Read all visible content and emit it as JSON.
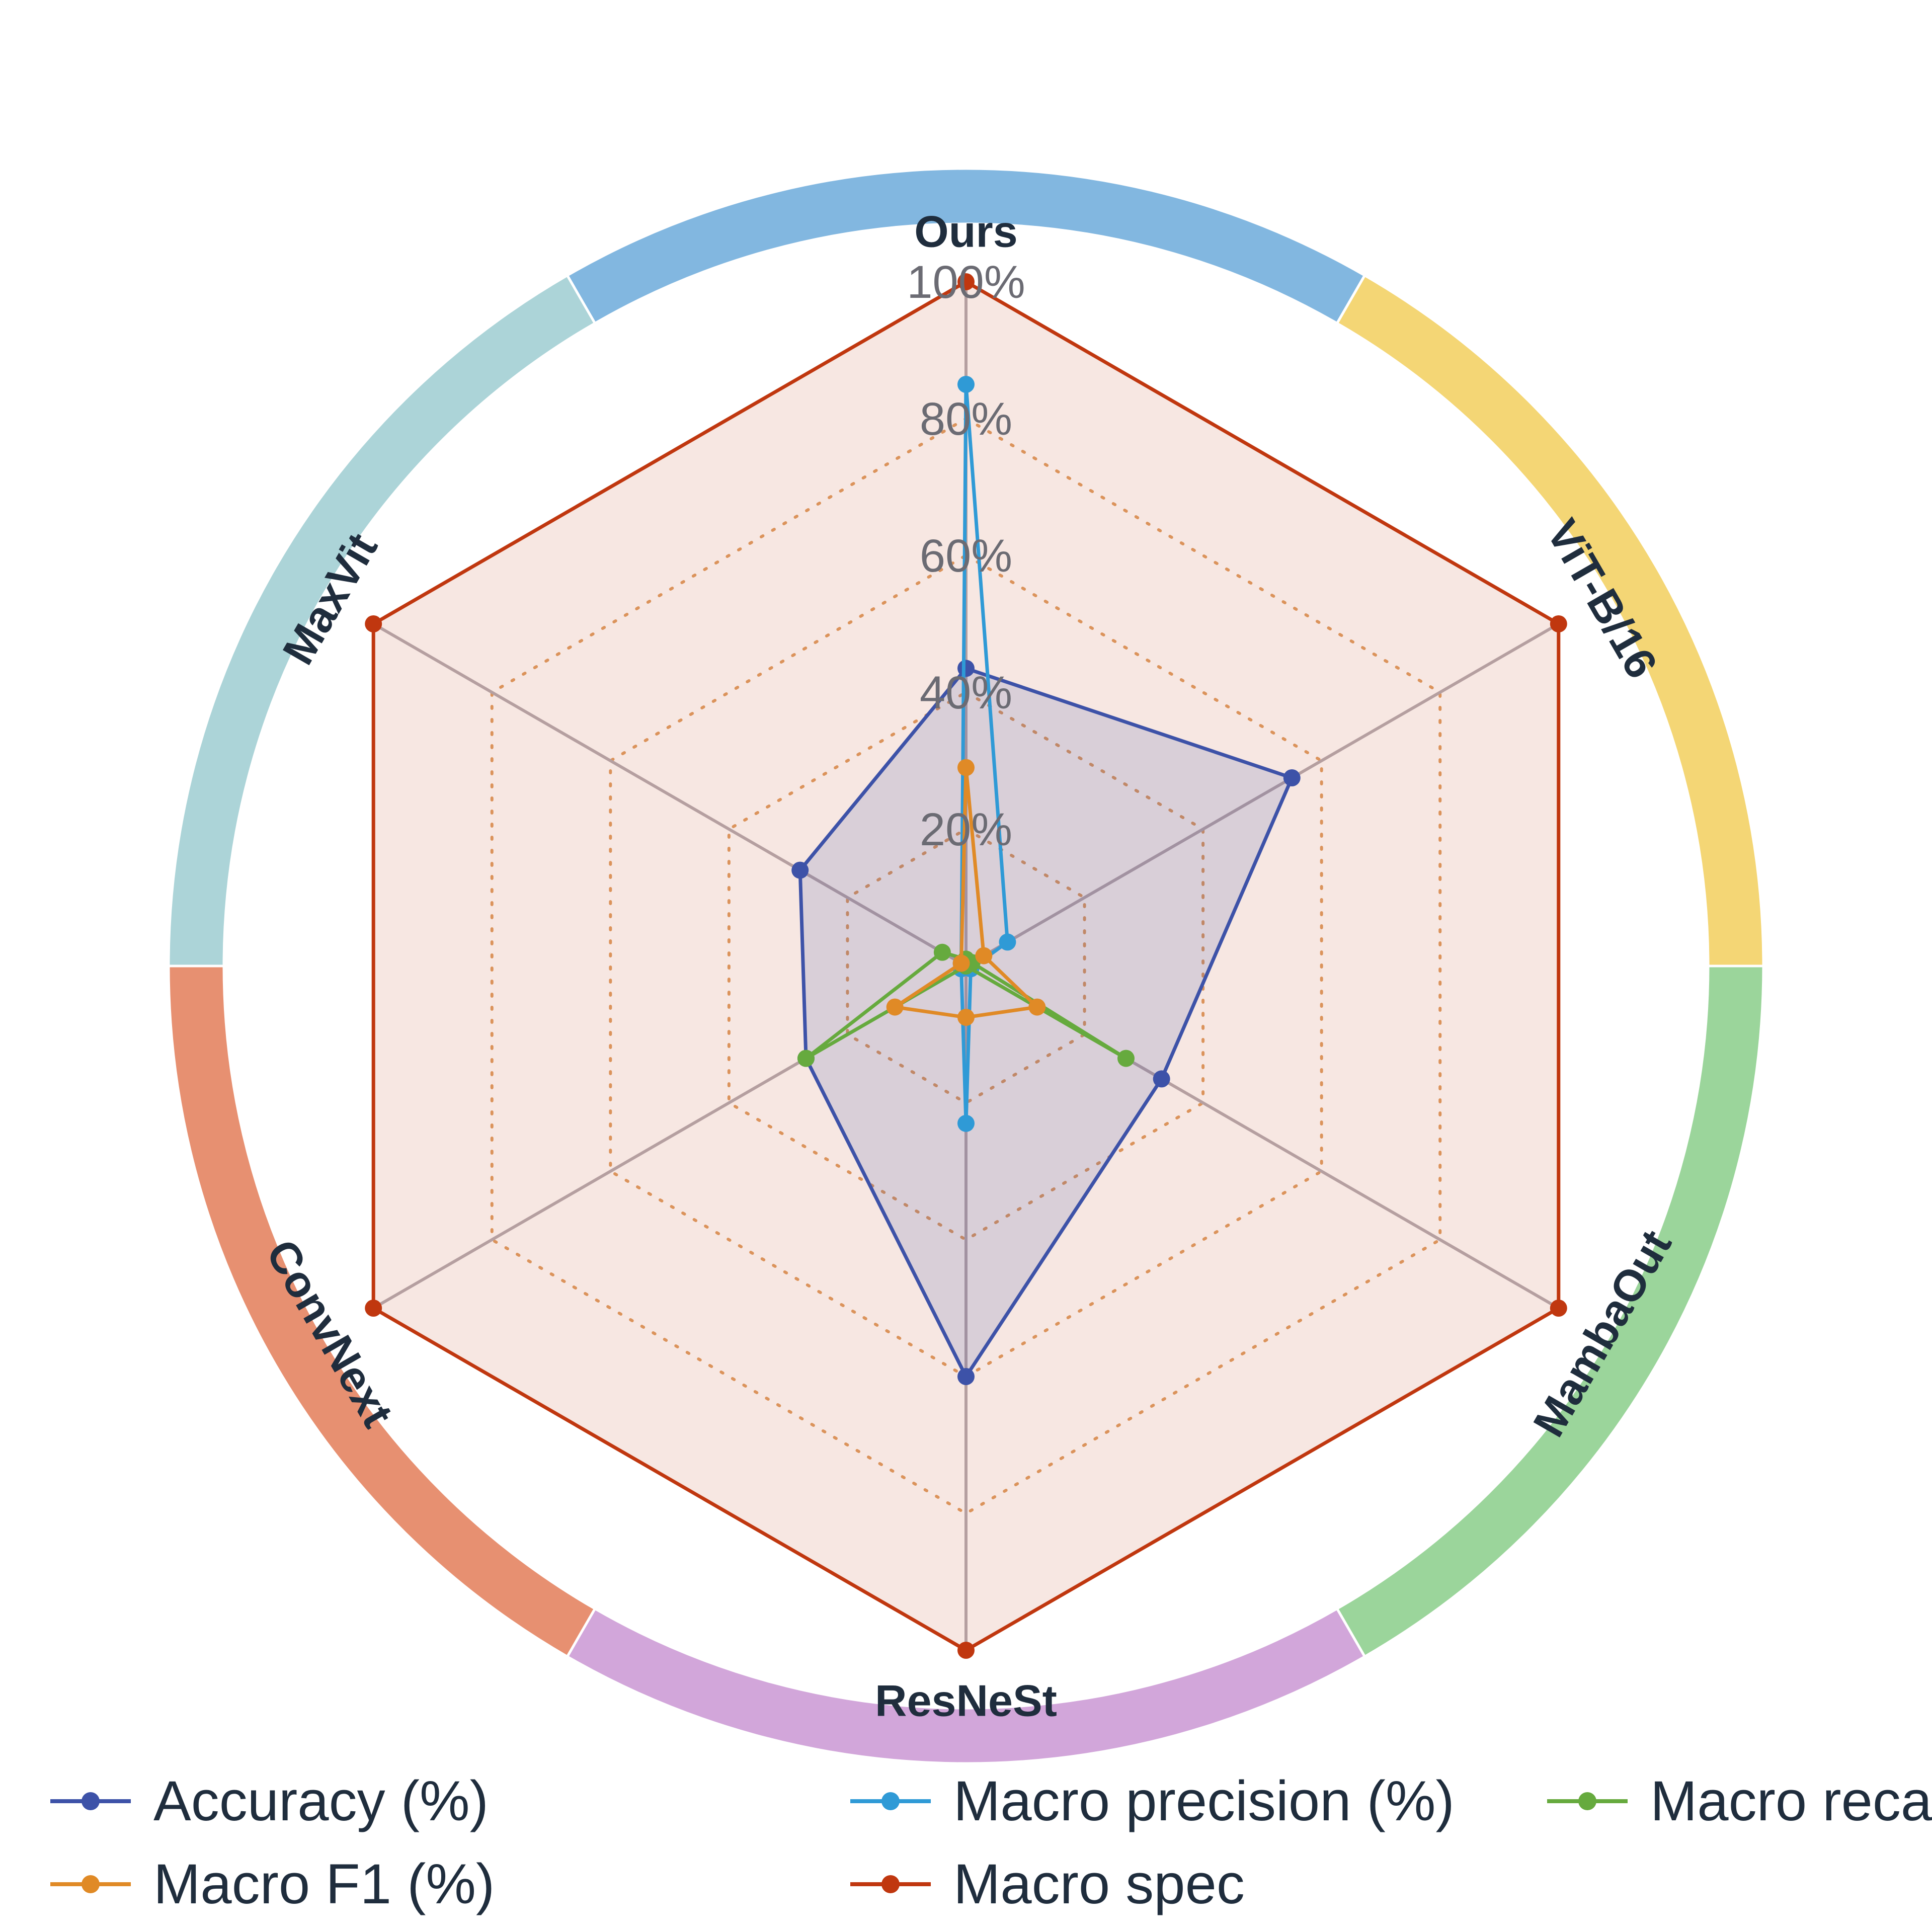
{
  "chart_data": {
    "type": "radar",
    "axes": [
      "Ours",
      "ViT-B/16",
      "MambaOut",
      "ResNeSt",
      "ConvNext",
      "MaxVit"
    ],
    "axis_colors": [
      "#82b7e0",
      "#f4d675",
      "#9bd59b",
      "#d2a6da",
      "#e79071",
      "#acd4d8"
    ],
    "rlim": [
      0,
      100
    ],
    "rticks": [
      20,
      40,
      60,
      80,
      100
    ],
    "rtick_labels": [
      "20%",
      "40%",
      "60%",
      "80%",
      "100%"
    ],
    "grid": "dotted",
    "legend_position": "bottom",
    "series": [
      {
        "name": "Accuracy (%)",
        "color": "#3d52a8",
        "values": [
          43.5,
          55,
          33,
          60,
          27,
          28
        ],
        "filled": true
      },
      {
        "name": "Macro precision (%)",
        "color": "#2f9ad6",
        "values": [
          85,
          7,
          0.8,
          23,
          0.8,
          0.8
        ],
        "filled": false
      },
      {
        "name": "Macro recall (%)",
        "color": "#66aa3e",
        "values": [
          1,
          1,
          27,
          0,
          27,
          4
        ],
        "filled": false
      },
      {
        "name": "Macro F1 (%)",
        "color": "#e08a26",
        "values": [
          29,
          3,
          12,
          7.5,
          12,
          0.8
        ],
        "filled": false
      },
      {
        "name": "Macro spec",
        "color": "#c0370f",
        "values": [
          100,
          100,
          100,
          100,
          100,
          100
        ],
        "filled": true
      }
    ]
  }
}
